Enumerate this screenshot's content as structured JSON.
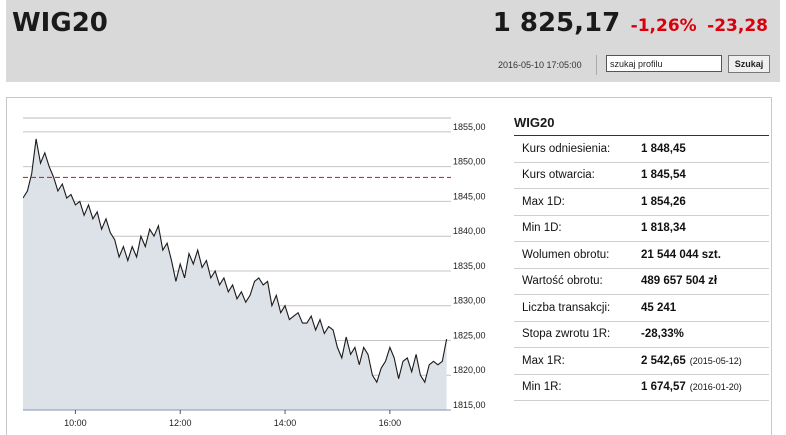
{
  "header": {
    "ticker": "WIG20",
    "price": "1 825,17",
    "change_pct": "-1,26%",
    "change_abs": "-23,28",
    "timestamp": "2016-05-10 17:05:00",
    "search_value": "szukaj profilu",
    "search_button": "Szukaj"
  },
  "stats": {
    "title": "WIG20",
    "rows": [
      {
        "label": "Kurs odniesienia:",
        "value": "1 848,45",
        "date": ""
      },
      {
        "label": "Kurs otwarcia:",
        "value": "1 845,54",
        "date": ""
      },
      {
        "label": "Max 1D:",
        "value": "1 854,26",
        "date": ""
      },
      {
        "label": "Min 1D:",
        "value": "1 818,34",
        "date": ""
      },
      {
        "label": "Wolumen obrotu:",
        "value": "21 544 044 szt.",
        "date": ""
      },
      {
        "label": "Wartość obrotu:",
        "value": "489 657 504 zł",
        "date": ""
      },
      {
        "label": "Liczba transakcji:",
        "value": "45 241",
        "date": ""
      },
      {
        "label": "Stopa zwrotu 1R:",
        "value": "-28,33%",
        "date": ""
      },
      {
        "label": "Max 1R:",
        "value": "2 542,65",
        "date": "(2015-05-12)"
      },
      {
        "label": "Min 1R:",
        "value": "1 674,57",
        "date": "(2016-01-20)"
      }
    ]
  },
  "colors": {
    "line": "#1a1a1a",
    "area": "#dde1e8",
    "reference": "#e0262b",
    "negative": "#d9000d"
  },
  "chart_data": {
    "type": "area",
    "title": "",
    "xlabel": "",
    "ylabel": "",
    "x_ticks": [
      "10:00",
      "12:00",
      "14:00",
      "16:00"
    ],
    "y_ticks": [
      "1815,00",
      "1820,00",
      "1825,00",
      "1830,00",
      "1835,00",
      "1840,00",
      "1845,00",
      "1850,00",
      "1855,00"
    ],
    "xlim": [
      "09:00",
      "17:10"
    ],
    "ylim": [
      1815,
      1857
    ],
    "reference_line": 1848.45,
    "grid": "horizontal",
    "y_axis": "right",
    "series": [
      {
        "x": [
          "09:00",
          "09:05",
          "09:10",
          "09:15",
          "09:20",
          "09:25",
          "09:30",
          "09:35",
          "09:40",
          "09:45",
          "09:50",
          "09:55",
          "10:00",
          "10:05",
          "10:10",
          "10:15",
          "10:20",
          "10:25",
          "10:30",
          "10:35",
          "10:40",
          "10:45",
          "10:50",
          "10:55",
          "11:00",
          "11:05",
          "11:10",
          "11:15",
          "11:20",
          "11:25",
          "11:30",
          "11:35",
          "11:40",
          "11:45",
          "11:50",
          "11:55",
          "12:00",
          "12:05",
          "12:10",
          "12:15",
          "12:20",
          "12:25",
          "12:30",
          "12:35",
          "12:40",
          "12:45",
          "12:50",
          "12:55",
          "13:00",
          "13:05",
          "13:10",
          "13:15",
          "13:20",
          "13:25",
          "13:30",
          "13:35",
          "13:40",
          "13:45",
          "13:50",
          "13:55",
          "14:00",
          "14:05",
          "14:10",
          "14:15",
          "14:20",
          "14:25",
          "14:30",
          "14:35",
          "14:40",
          "14:45",
          "14:50",
          "14:55",
          "15:00",
          "15:05",
          "15:10",
          "15:15",
          "15:20",
          "15:25",
          "15:30",
          "15:35",
          "15:40",
          "15:45",
          "15:50",
          "15:55",
          "16:00",
          "16:05",
          "16:10",
          "16:15",
          "16:20",
          "16:25",
          "16:30",
          "16:35",
          "16:40",
          "16:45",
          "16:50",
          "16:55",
          "17:00",
          "17:05"
        ],
        "y": [
          1845.5,
          1846.5,
          1849,
          1854,
          1850.5,
          1852,
          1850,
          1848.5,
          1846.5,
          1847.5,
          1845.5,
          1846,
          1844.5,
          1845,
          1843,
          1844.5,
          1842.5,
          1843.5,
          1841,
          1842.5,
          1840.5,
          1839.5,
          1837,
          1838.5,
          1836.5,
          1838.5,
          1837,
          1840,
          1838.5,
          1841,
          1840,
          1841.5,
          1838,
          1839,
          1836.5,
          1833.5,
          1836,
          1834,
          1837.5,
          1836,
          1838,
          1835.5,
          1836.5,
          1834,
          1835,
          1833,
          1834,
          1832,
          1833,
          1831,
          1832,
          1830.5,
          1831.5,
          1833.5,
          1834,
          1833,
          1833.5,
          1830,
          1831.5,
          1829,
          1830,
          1828,
          1828.5,
          1829,
          1827.5,
          1827.5,
          1828.5,
          1826.5,
          1828,
          1826,
          1827,
          1826.5,
          1824,
          1822.5,
          1825.5,
          1823,
          1824,
          1821.5,
          1824,
          1823,
          1820,
          1819,
          1821,
          1822,
          1824,
          1822.5,
          1819.5,
          1822,
          1822.5,
          1820.5,
          1823,
          1820,
          1819,
          1821.5,
          1822,
          1821.5,
          1822,
          1825.2
        ]
      }
    ]
  }
}
